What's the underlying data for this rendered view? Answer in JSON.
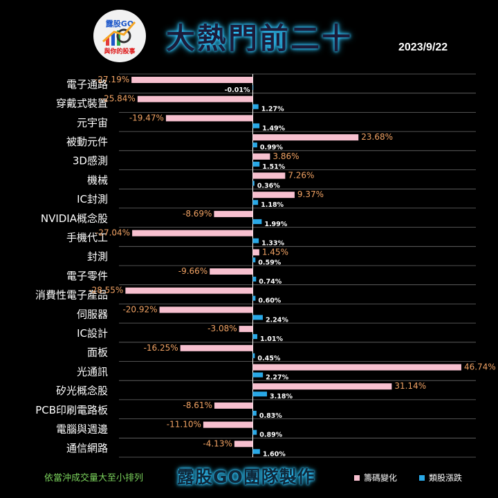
{
  "header": {
    "title": "大熱門前二十",
    "date": "2023/9/22",
    "logo_brand": "露股GO",
    "logo_tagline": "與你的股事"
  },
  "footer": {
    "note": "依當沖成交量大至小排列",
    "credit": "露股GO團隊製作"
  },
  "colors": {
    "pink": "#f7c0cf",
    "blue": "#29a8e6",
    "grid": "#6e6e6e",
    "axis": "#ffffff",
    "pink_label": "#f2a364",
    "blue_label": "#ffffff"
  },
  "chart_data": {
    "type": "bar",
    "orientation": "horizontal",
    "xlim": [
      -30,
      50
    ],
    "legend_position": "bottom-right",
    "categories": [
      "電子通路",
      "穿戴式裝置",
      "元宇宙",
      "被動元件",
      "3D感測",
      "機械",
      "IC封測",
      "NVIDIA概念股",
      "手機代工",
      "封測",
      "電子零件",
      "消費性電子產品",
      "伺服器",
      "IC設計",
      "面板",
      "光通訊",
      "矽光概念股",
      "PCB印刷電路板",
      "電腦與週邊",
      "通信網路"
    ],
    "series": [
      {
        "name": "籌碼變化",
        "values": [
          -27.19,
          -25.84,
          -19.47,
          23.68,
          3.86,
          7.26,
          9.37,
          -8.69,
          -27.04,
          1.45,
          -9.66,
          -28.55,
          -20.92,
          -3.08,
          -16.25,
          46.74,
          31.14,
          -8.61,
          -11.1,
          -4.13
        ],
        "labels": [
          "-27.19%",
          "-25.84%",
          "-19.47%",
          "23.68%",
          "3.86%",
          "7.26%",
          "9.37%",
          "-8.69%",
          "-27.04%",
          "1.45%",
          "-9.66%",
          "-28.55%",
          "-20.92%",
          "-3.08%",
          "-16.25%",
          "46.74%",
          "31.14%",
          "-8.61%",
          "-11.10%",
          "-4.13%"
        ]
      },
      {
        "name": "類股漲跌",
        "values": [
          -0.01,
          1.27,
          1.49,
          0.99,
          1.51,
          0.36,
          1.18,
          1.99,
          1.33,
          0.59,
          0.74,
          0.6,
          2.24,
          1.01,
          0.45,
          2.27,
          3.18,
          0.83,
          0.89,
          1.6
        ],
        "labels": [
          "-0.01%",
          "1.27%",
          "1.49%",
          "0.99%",
          "1.51%",
          "0.36%",
          "1.18%",
          "1.99%",
          "1.33%",
          "0.59%",
          "0.74%",
          "0.60%",
          "2.24%",
          "1.01%",
          "0.45%",
          "2.27%",
          "3.18%",
          "0.83%",
          "0.89%",
          "1.60%"
        ]
      }
    ]
  }
}
